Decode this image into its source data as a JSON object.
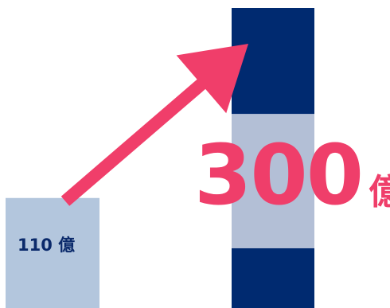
{
  "chart_data": {
    "type": "bar",
    "categories": [
      "",
      ""
    ],
    "values": [
      110,
      300
    ],
    "value_labels": [
      "110",
      "300"
    ],
    "unit": "億",
    "title": "",
    "xlabel": "",
    "ylabel": "",
    "ylim": [
      0,
      300
    ],
    "grid": false,
    "legend": "none",
    "colors": {
      "bar_light": "#b3c6dd",
      "bar_dark": "#002a70",
      "bar_mid_light": "#b3bfd6",
      "arrow": "#f03e6a",
      "small_label": "#0b2a6b",
      "big_label": "#ef3e6a"
    },
    "annotations": [
      {
        "type": "arrow",
        "from_category": 0,
        "to_category": 1,
        "icon": "arrow-up-right-icon"
      }
    ]
  }
}
